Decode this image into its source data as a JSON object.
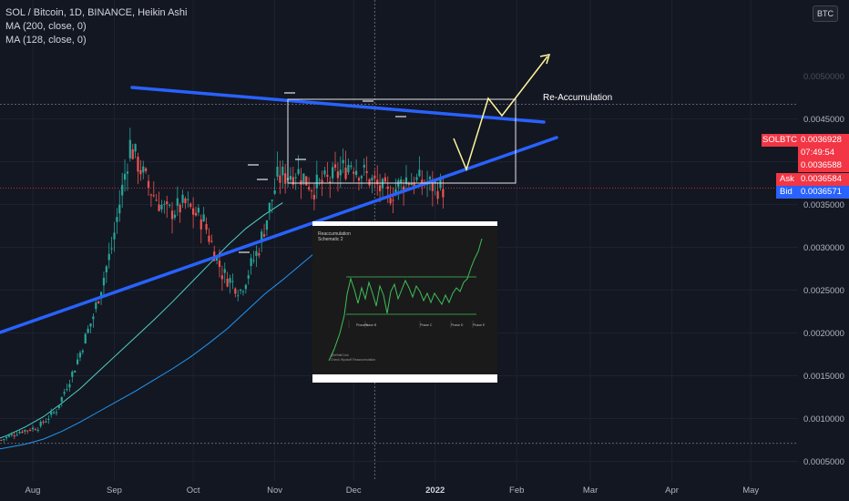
{
  "legend": {
    "title": "SOL / Bitcoin, 1D, BINANCE, Heikin Ashi",
    "ma1": "MA (200, close, 0)",
    "ma2": "MA (128, close, 0)"
  },
  "currency_badge": "BTC",
  "price_axis": {
    "labels": [
      "0.0045000",
      "0.0040000",
      "0.0035000",
      "0.0030000",
      "0.0025000",
      "0.0020000",
      "0.0015000",
      "0.0010000",
      "0.0005000"
    ],
    "top_label": "0.0050000"
  },
  "price_tags": {
    "ticker": "SOLBTC",
    "last": "0.0036928",
    "countdown": "07:49:54",
    "second": "0.0036588",
    "ask_label": "Ask",
    "ask": "0.0036584",
    "bid_label": "Bid",
    "bid": "0.0036571"
  },
  "time_axis": [
    "Aug",
    "Sep",
    "Oct",
    "Nov",
    "Dec",
    "2022",
    "Feb",
    "Mar",
    "Apr",
    "May"
  ],
  "annotation": "Re-Accumulation",
  "inset": {
    "title_line1": "Reaccumulation",
    "title_line2": "Schematic 2",
    "phases": [
      "Phase A",
      "Phase B",
      "Phase C",
      "Phase D",
      "Phase E"
    ],
    "footer_line1": "@WhiteCoin",
    "footer_line2": "Check Wyckoff Reaccumulation"
  },
  "colors": {
    "background": "#131722",
    "bull": "#26a69a",
    "bear": "#ef5350",
    "trendline": "#2962ff",
    "projection": "#fff59d",
    "ma200": "#2196f3",
    "ma128": "#4dd0c4",
    "ask": "#f23645",
    "bid": "#2962ff"
  },
  "chart_data": {
    "type": "candlestick",
    "symbol": "SOLBTC",
    "interval": "1D",
    "style": "Heikin Ashi",
    "ylim": [
      0.00025,
      0.00525
    ],
    "dates": [
      "2021-07-20",
      "2021-07-27",
      "2021-08-03",
      "2021-08-10",
      "2021-08-17",
      "2021-08-24",
      "2021-08-31",
      "2021-09-07",
      "2021-09-14",
      "2021-09-21",
      "2021-09-28",
      "2021-10-05",
      "2021-10-12",
      "2021-10-19",
      "2021-10-26",
      "2021-11-02",
      "2021-11-09",
      "2021-11-16",
      "2021-11-23",
      "2021-11-30",
      "2021-12-07",
      "2021-12-14",
      "2021-12-21",
      "2021-12-28",
      "2022-01-04"
    ],
    "close": [
      0.00075,
      0.00085,
      0.0009,
      0.0011,
      0.0016,
      0.0022,
      0.003,
      0.0042,
      0.0037,
      0.0034,
      0.0035,
      0.0033,
      0.0027,
      0.0025,
      0.003,
      0.0038,
      0.0039,
      0.0037,
      0.0038,
      0.004,
      0.0038,
      0.0036,
      0.0038,
      0.00375,
      0.00369
    ],
    "ma200": [
      0.00055,
      0.00058,
      0.00062,
      0.00066,
      0.0007,
      0.00076,
      0.00085,
      0.00096,
      0.00108,
      0.0012,
      0.00132,
      0.00145,
      0.00158,
      0.00172,
      0.00188,
      0.00205,
      0.00225,
      0.00245,
      0.00262,
      0.0028,
      0.00298
    ],
    "ma128": [
      0.00058,
      0.00065,
      0.00072,
      0.0008,
      0.0009,
      0.00102,
      0.00118,
      0.00135,
      0.00155,
      0.00175,
      0.00195,
      0.00215,
      0.00236,
      0.00258,
      0.0028,
      0.00302,
      0.00322,
      0.00338,
      0.00352
    ],
    "horizontal_lines": [
      0.00467,
      0.00071
    ],
    "vertical_line_date": "2021-12-09"
  }
}
